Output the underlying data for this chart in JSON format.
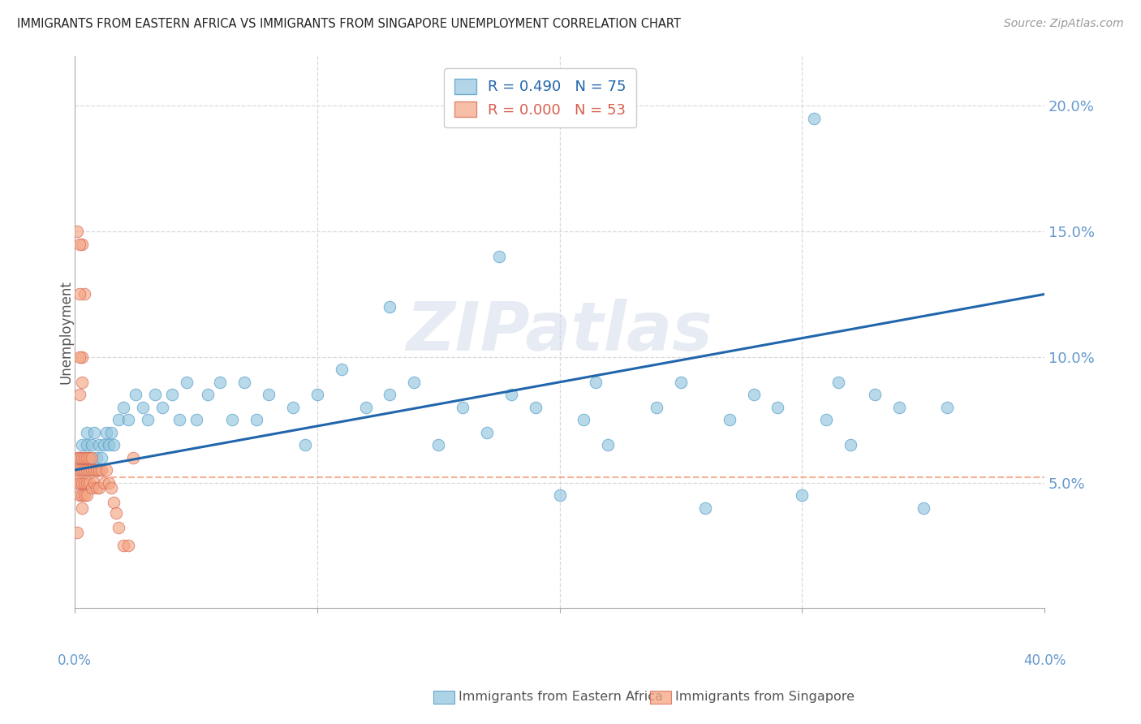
{
  "title": "IMMIGRANTS FROM EASTERN AFRICA VS IMMIGRANTS FROM SINGAPORE UNEMPLOYMENT CORRELATION CHART",
  "source": "Source: ZipAtlas.com",
  "ylabel": "Unemployment",
  "xlim": [
    0.0,
    0.4
  ],
  "ylim": [
    0.0,
    0.22
  ],
  "yticks": [
    0.05,
    0.1,
    0.15,
    0.2
  ],
  "ytick_labels": [
    "5.0%",
    "10.0%",
    "15.0%",
    "20.0%"
  ],
  "xtick_left_label": "0.0%",
  "xtick_right_label": "40.0%",
  "blue_color": "#92c5de",
  "blue_edge": "#4393c3",
  "pink_color": "#f4a582",
  "pink_edge": "#d6604d",
  "legend_blue_R": "R = 0.490",
  "legend_blue_N": "N = 75",
  "legend_pink_R": "R = 0.000",
  "legend_pink_N": "N = 53",
  "trend_blue_color": "#2166ac",
  "trend_pink_color": "#f4a582",
  "trend_pink_dash": true,
  "watermark": "ZIPatlas",
  "watermark_color": "#d0d8e8",
  "grid_color": "#d9d9d9",
  "spine_color": "#aaaaaa",
  "title_color": "#222222",
  "source_color": "#999999",
  "ylabel_color": "#555555",
  "tick_label_color": "#6699cc",
  "bottom_label_blue": "Immigrants from Eastern Africa",
  "bottom_label_pink": "Immigrants from Singapore",
  "blue_x": [
    0.002,
    0.003,
    0.003,
    0.004,
    0.004,
    0.005,
    0.005,
    0.005,
    0.006,
    0.006,
    0.007,
    0.007,
    0.008,
    0.008,
    0.009,
    0.009,
    0.01,
    0.01,
    0.011,
    0.012,
    0.013,
    0.014,
    0.015,
    0.016,
    0.018,
    0.02,
    0.022,
    0.025,
    0.028,
    0.03,
    0.033,
    0.036,
    0.04,
    0.043,
    0.046,
    0.05,
    0.055,
    0.06,
    0.065,
    0.07,
    0.075,
    0.08,
    0.09,
    0.095,
    0.1,
    0.11,
    0.12,
    0.13,
    0.14,
    0.15,
    0.16,
    0.17,
    0.18,
    0.19,
    0.2,
    0.21,
    0.215,
    0.22,
    0.24,
    0.25,
    0.26,
    0.27,
    0.28,
    0.29,
    0.3,
    0.31,
    0.315,
    0.32,
    0.33,
    0.34,
    0.35,
    0.36,
    0.305,
    0.175,
    0.13
  ],
  "blue_y": [
    0.06,
    0.065,
    0.055,
    0.06,
    0.055,
    0.065,
    0.07,
    0.055,
    0.06,
    0.055,
    0.065,
    0.055,
    0.07,
    0.055,
    0.06,
    0.055,
    0.065,
    0.055,
    0.06,
    0.065,
    0.07,
    0.065,
    0.07,
    0.065,
    0.075,
    0.08,
    0.075,
    0.085,
    0.08,
    0.075,
    0.085,
    0.08,
    0.085,
    0.075,
    0.09,
    0.075,
    0.085,
    0.09,
    0.075,
    0.09,
    0.075,
    0.085,
    0.08,
    0.065,
    0.085,
    0.095,
    0.08,
    0.085,
    0.09,
    0.065,
    0.08,
    0.07,
    0.085,
    0.08,
    0.045,
    0.075,
    0.09,
    0.065,
    0.08,
    0.09,
    0.04,
    0.075,
    0.085,
    0.08,
    0.045,
    0.075,
    0.09,
    0.065,
    0.085,
    0.08,
    0.04,
    0.08,
    0.195,
    0.14,
    0.12
  ],
  "pink_x": [
    0.001,
    0.001,
    0.001,
    0.002,
    0.002,
    0.002,
    0.002,
    0.003,
    0.003,
    0.003,
    0.003,
    0.003,
    0.004,
    0.004,
    0.004,
    0.004,
    0.005,
    0.005,
    0.005,
    0.005,
    0.006,
    0.006,
    0.006,
    0.007,
    0.007,
    0.007,
    0.008,
    0.008,
    0.009,
    0.009,
    0.01,
    0.01,
    0.011,
    0.012,
    0.013,
    0.014,
    0.015,
    0.016,
    0.017,
    0.018,
    0.02,
    0.022,
    0.024,
    0.003,
    0.004,
    0.003,
    0.002,
    0.001,
    0.002,
    0.002,
    0.003,
    0.002,
    0.001
  ],
  "pink_y": [
    0.055,
    0.06,
    0.05,
    0.06,
    0.055,
    0.05,
    0.045,
    0.06,
    0.055,
    0.05,
    0.045,
    0.04,
    0.06,
    0.055,
    0.05,
    0.045,
    0.06,
    0.055,
    0.05,
    0.045,
    0.06,
    0.055,
    0.05,
    0.06,
    0.055,
    0.048,
    0.055,
    0.05,
    0.055,
    0.048,
    0.055,
    0.048,
    0.055,
    0.05,
    0.055,
    0.05,
    0.048,
    0.042,
    0.038,
    0.032,
    0.025,
    0.025,
    0.06,
    0.145,
    0.125,
    0.1,
    0.145,
    0.15,
    0.125,
    0.1,
    0.09,
    0.085,
    0.03
  ],
  "trend_blue_x0": 0.0,
  "trend_blue_y0": 0.055,
  "trend_blue_x1": 0.4,
  "trend_blue_y1": 0.125,
  "trend_pink_y": 0.052
}
